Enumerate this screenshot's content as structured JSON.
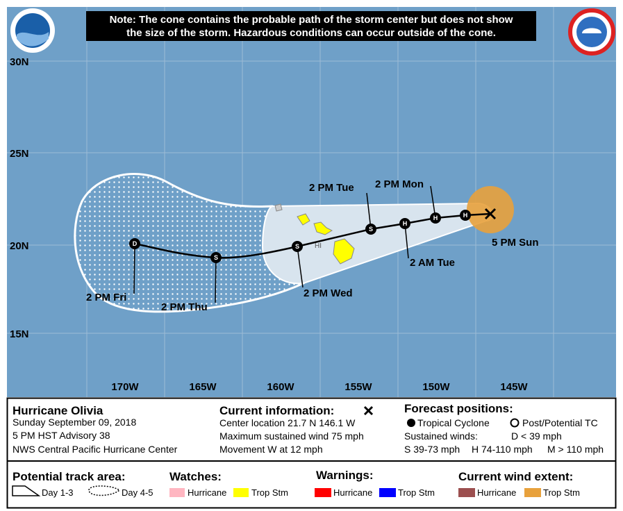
{
  "header": {
    "note": [
      "Note: The cone contains the probable path of the storm center but does not show",
      "the size of the storm. Hazardous conditions can occur outside of the cone."
    ]
  },
  "map": {
    "lat_labels": [
      "30N",
      "25N",
      "20N",
      "15N"
    ],
    "lon_labels": [
      "170W",
      "165W",
      "160W",
      "155W",
      "150W",
      "145W"
    ],
    "region_label": "HI",
    "markers": [
      "H",
      "H",
      "H",
      "S",
      "S",
      "S",
      "D"
    ],
    "track_labels": [
      "5 PM Sun",
      "2 PM Mon",
      "2 AM Tue",
      "2 PM Tue",
      "2 PM Wed",
      "2 PM Thu",
      "2 PM Fri"
    ]
  },
  "info": {
    "storm_name": "Hurricane Olivia",
    "lines": [
      "Sunday September 09, 2018",
      "5 PM HST Advisory 38",
      "NWS Central Pacific Hurricane Center"
    ],
    "current": {
      "title": "Current information:",
      "lines": [
        "Center location 21.7 N 146.1 W",
        "Maximum sustained wind 75 mph",
        "Movement W at 12 mph"
      ]
    },
    "forecast": {
      "title": "Forecast positions:",
      "tropical_cyclone": "Tropical Cyclone",
      "post_potential": "Post/Potential TC",
      "sustained_winds": "Sustained winds:",
      "d": "D < 39 mph",
      "s": "S 39-73 mph",
      "h": "H 74-110 mph",
      "m": "M > 110 mph"
    }
  },
  "legend": {
    "track_area": {
      "title": "Potential track area:",
      "items": [
        "Day 1-3",
        "Day 4-5"
      ]
    },
    "watches": {
      "title": "Watches:",
      "items": [
        "Hurricane",
        "Trop Stm"
      ]
    },
    "warnings": {
      "title": "Warnings:",
      "items": [
        "Hurricane",
        "Trop Stm"
      ]
    },
    "wind_extent": {
      "title": "Current wind extent:",
      "items": [
        "Hurricane",
        "Trop Stm"
      ]
    }
  }
}
